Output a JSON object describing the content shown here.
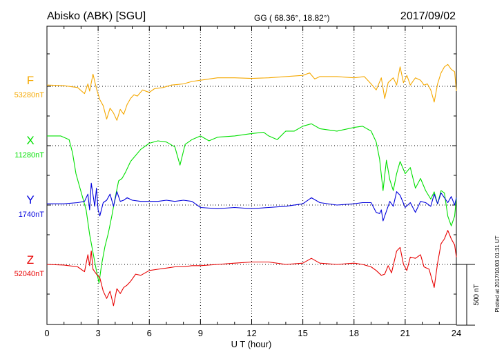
{
  "header": {
    "station": "Abisko (ABK)  [SGU]",
    "coords": "GG ( 68.36°,  18.82°)",
    "date": "2017/09/02"
  },
  "side_note": "Plotted at 2017/10/03 01:31  UT",
  "chart_data": {
    "type": "line",
    "xlabel": "U T (hour)",
    "xlim": [
      0,
      24
    ],
    "x_ticks": [
      "0",
      "3",
      "6",
      "9",
      "12",
      "15",
      "18",
      "21",
      "24"
    ],
    "scale_bar_label": "500 nT",
    "scale_bar_nT": 500,
    "colors": {
      "F": "#f5a800",
      "X": "#00e000",
      "Y": "#0000dd",
      "Z": "#e80000"
    },
    "series": [
      {
        "name": "F",
        "baseline_label": "53280nT",
        "baseline_nT": 53280,
        "points": [
          [
            0,
            53290
          ],
          [
            1,
            53285
          ],
          [
            1.8,
            53270
          ],
          [
            2.2,
            53220
          ],
          [
            2.4,
            53300
          ],
          [
            2.5,
            53240
          ],
          [
            2.7,
            53380
          ],
          [
            2.9,
            53260
          ],
          [
            3.1,
            53170
          ],
          [
            3.3,
            53120
          ],
          [
            3.5,
            53010
          ],
          [
            3.7,
            53100
          ],
          [
            3.9,
            53060
          ],
          [
            4.1,
            53000
          ],
          [
            4.3,
            53090
          ],
          [
            4.5,
            53050
          ],
          [
            4.7,
            53130
          ],
          [
            4.9,
            53180
          ],
          [
            5.1,
            53210
          ],
          [
            5.3,
            53200
          ],
          [
            5.6,
            53250
          ],
          [
            6,
            53230
          ],
          [
            6.3,
            53260
          ],
          [
            6.8,
            53270
          ],
          [
            7.3,
            53290
          ],
          [
            8,
            53300
          ],
          [
            8.5,
            53320
          ],
          [
            9,
            53330
          ],
          [
            10,
            53350
          ],
          [
            11,
            53350
          ],
          [
            12,
            53345
          ],
          [
            13,
            53350
          ],
          [
            14,
            53360
          ],
          [
            15,
            53370
          ],
          [
            15.4,
            53390
          ],
          [
            15.7,
            53340
          ],
          [
            16,
            53360
          ],
          [
            17,
            53360
          ],
          [
            18,
            53350
          ],
          [
            18.6,
            53360
          ],
          [
            19,
            53300
          ],
          [
            19.3,
            53250
          ],
          [
            19.6,
            53350
          ],
          [
            19.8,
            53180
          ],
          [
            20,
            53310
          ],
          [
            20.3,
            53350
          ],
          [
            20.5,
            53290
          ],
          [
            20.7,
            53440
          ],
          [
            20.9,
            53310
          ],
          [
            21.1,
            53370
          ],
          [
            21.3,
            53290
          ],
          [
            21.6,
            53350
          ],
          [
            21.9,
            53330
          ],
          [
            22.1,
            53290
          ],
          [
            22.3,
            53300
          ],
          [
            22.5,
            53250
          ],
          [
            22.7,
            53150
          ],
          [
            22.9,
            53300
          ],
          [
            23.1,
            53390
          ],
          [
            23.3,
            53440
          ],
          [
            23.5,
            53460
          ],
          [
            23.7,
            53420
          ],
          [
            23.9,
            53400
          ],
          [
            24,
            53240
          ]
        ]
      },
      {
        "name": "X",
        "baseline_label": "11280nT",
        "baseline_nT": 11280,
        "points": [
          [
            0,
            11360
          ],
          [
            0.8,
            11360
          ],
          [
            1.3,
            11330
          ],
          [
            1.5,
            11220
          ],
          [
            1.7,
            11050
          ],
          [
            1.9,
            10950
          ],
          [
            2.1,
            10850
          ],
          [
            2.3,
            10750
          ],
          [
            2.5,
            10550
          ],
          [
            2.7,
            10400
          ],
          [
            2.9,
            10250
          ],
          [
            3.05,
            10150
          ],
          [
            3.2,
            10300
          ],
          [
            3.4,
            10450
          ],
          [
            3.6,
            10560
          ],
          [
            3.8,
            10700
          ],
          [
            4,
            10850
          ],
          [
            4.2,
            10990
          ],
          [
            4.4,
            11010
          ],
          [
            4.6,
            11060
          ],
          [
            4.9,
            11150
          ],
          [
            5.2,
            11200
          ],
          [
            5.5,
            11250
          ],
          [
            6,
            11300
          ],
          [
            6.5,
            11320
          ],
          [
            7,
            11310
          ],
          [
            7.5,
            11270
          ],
          [
            7.8,
            11120
          ],
          [
            8.1,
            11290
          ],
          [
            8.5,
            11330
          ],
          [
            9,
            11360
          ],
          [
            9.5,
            11320
          ],
          [
            10,
            11350
          ],
          [
            11,
            11360
          ],
          [
            12,
            11380
          ],
          [
            12.7,
            11390
          ],
          [
            13,
            11360
          ],
          [
            13.5,
            11330
          ],
          [
            14,
            11400
          ],
          [
            14.5,
            11400
          ],
          [
            15,
            11440
          ],
          [
            15.5,
            11460
          ],
          [
            16,
            11420
          ],
          [
            17,
            11400
          ],
          [
            18,
            11430
          ],
          [
            18.5,
            11440
          ],
          [
            19,
            11400
          ],
          [
            19.3,
            11310
          ],
          [
            19.5,
            11170
          ],
          [
            19.7,
            10910
          ],
          [
            19.9,
            11160
          ],
          [
            20.1,
            11000
          ],
          [
            20.3,
            10910
          ],
          [
            20.5,
            11050
          ],
          [
            20.7,
            11150
          ],
          [
            21,
            11050
          ],
          [
            21.3,
            11100
          ],
          [
            21.6,
            10930
          ],
          [
            21.9,
            11010
          ],
          [
            22.2,
            10910
          ],
          [
            22.5,
            10840
          ],
          [
            22.7,
            10900
          ],
          [
            22.9,
            10800
          ],
          [
            23.1,
            10910
          ],
          [
            23.3,
            10890
          ],
          [
            23.5,
            10700
          ],
          [
            23.7,
            10620
          ],
          [
            23.9,
            10700
          ],
          [
            24,
            10850
          ]
        ]
      },
      {
        "name": "Y",
        "baseline_label": "1740nT",
        "baseline_nT": 1740,
        "points": [
          [
            0,
            1750
          ],
          [
            1,
            1750
          ],
          [
            1.8,
            1760
          ],
          [
            2.2,
            1770
          ],
          [
            2.4,
            1830
          ],
          [
            2.5,
            1700
          ],
          [
            2.6,
            1920
          ],
          [
            2.8,
            1730
          ],
          [
            2.9,
            1880
          ],
          [
            3,
            1700
          ],
          [
            3.1,
            1650
          ],
          [
            3.3,
            1760
          ],
          [
            3.5,
            1780
          ],
          [
            3.7,
            1830
          ],
          [
            3.9,
            1730
          ],
          [
            4.1,
            1850
          ],
          [
            4.3,
            1770
          ],
          [
            4.5,
            1780
          ],
          [
            4.7,
            1800
          ],
          [
            5,
            1780
          ],
          [
            5.5,
            1770
          ],
          [
            6,
            1770
          ],
          [
            6.5,
            1770
          ],
          [
            7,
            1780
          ],
          [
            7.5,
            1770
          ],
          [
            8,
            1780
          ],
          [
            8.5,
            1770
          ],
          [
            9,
            1720
          ],
          [
            10,
            1710
          ],
          [
            11,
            1720
          ],
          [
            12,
            1710
          ],
          [
            13,
            1720
          ],
          [
            14,
            1730
          ],
          [
            15,
            1750
          ],
          [
            15.5,
            1800
          ],
          [
            16,
            1760
          ],
          [
            17,
            1740
          ],
          [
            18,
            1750
          ],
          [
            18.5,
            1760
          ],
          [
            19,
            1760
          ],
          [
            19.3,
            1680
          ],
          [
            19.5,
            1670
          ],
          [
            19.6,
            1700
          ],
          [
            19.7,
            1610
          ],
          [
            19.9,
            1690
          ],
          [
            20.1,
            1770
          ],
          [
            20.3,
            1730
          ],
          [
            20.5,
            1850
          ],
          [
            20.7,
            1820
          ],
          [
            21,
            1720
          ],
          [
            21.3,
            1760
          ],
          [
            21.6,
            1680
          ],
          [
            21.9,
            1770
          ],
          [
            22.2,
            1760
          ],
          [
            22.5,
            1730
          ],
          [
            22.7,
            1830
          ],
          [
            22.9,
            1750
          ],
          [
            23.1,
            1840
          ],
          [
            23.3,
            1800
          ],
          [
            23.5,
            1760
          ],
          [
            23.7,
            1810
          ],
          [
            23.9,
            1740
          ],
          [
            24,
            1800
          ]
        ]
      },
      {
        "name": "Z",
        "baseline_label": "52040nT",
        "baseline_nT": 52040,
        "points": [
          [
            0,
            52040
          ],
          [
            1,
            52035
          ],
          [
            1.8,
            52020
          ],
          [
            2.2,
            51980
          ],
          [
            2.4,
            52120
          ],
          [
            2.5,
            52030
          ],
          [
            2.6,
            52150
          ],
          [
            2.7,
            52000
          ],
          [
            2.9,
            51960
          ],
          [
            3.1,
            51930
          ],
          [
            3.3,
            51820
          ],
          [
            3.5,
            51760
          ],
          [
            3.7,
            51820
          ],
          [
            3.9,
            51700
          ],
          [
            4.1,
            51840
          ],
          [
            4.3,
            51800
          ],
          [
            4.5,
            51850
          ],
          [
            4.7,
            51870
          ],
          [
            4.9,
            51900
          ],
          [
            5.2,
            51960
          ],
          [
            5.5,
            51950
          ],
          [
            6,
            51990
          ],
          [
            6.5,
            52000
          ],
          [
            7,
            52010
          ],
          [
            7.5,
            52020
          ],
          [
            8,
            52020
          ],
          [
            8.5,
            52030
          ],
          [
            9,
            52030
          ],
          [
            10,
            52040
          ],
          [
            11,
            52050
          ],
          [
            12,
            52060
          ],
          [
            13,
            52060
          ],
          [
            14,
            52040
          ],
          [
            15,
            52050
          ],
          [
            15.5,
            52090
          ],
          [
            16,
            52050
          ],
          [
            17,
            52040
          ],
          [
            18,
            52050
          ],
          [
            18.5,
            52040
          ],
          [
            19,
            52020
          ],
          [
            19.3,
            51990
          ],
          [
            19.6,
            51950
          ],
          [
            19.8,
            51960
          ],
          [
            20,
            52030
          ],
          [
            20.2,
            51970
          ],
          [
            20.5,
            52150
          ],
          [
            20.7,
            52180
          ],
          [
            20.9,
            52040
          ],
          [
            21.1,
            51990
          ],
          [
            21.3,
            52100
          ],
          [
            21.6,
            52090
          ],
          [
            21.9,
            52120
          ],
          [
            22.1,
            52020
          ],
          [
            22.4,
            52000
          ],
          [
            22.7,
            51850
          ],
          [
            22.9,
            52050
          ],
          [
            23.1,
            52210
          ],
          [
            23.3,
            52250
          ],
          [
            23.5,
            52320
          ],
          [
            23.7,
            52250
          ],
          [
            23.9,
            52200
          ],
          [
            24,
            52100
          ]
        ]
      }
    ]
  }
}
